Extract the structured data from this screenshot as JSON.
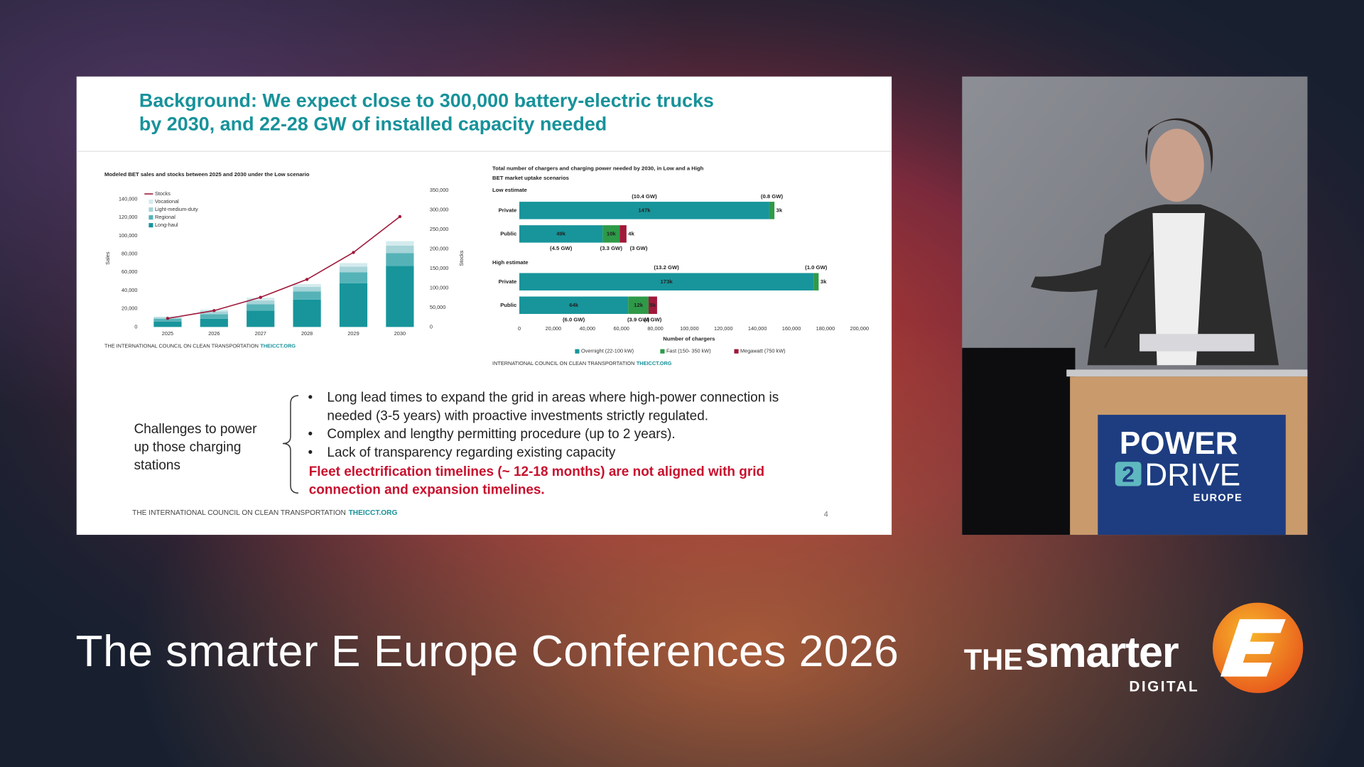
{
  "slide": {
    "title": [
      "Background: We expect close to 300,000 battery-electric trucks",
      "by 2030, and 22-28 GW of installed capacity needed"
    ],
    "challenges": [
      "Challenges to power",
      "up those charging",
      "stations"
    ],
    "bullets": [
      [
        "Long lead times to expand the grid in areas where high-power connection is",
        "needed (3-5 years) with proactive investments strictly regulated."
      ],
      [
        "Complex and lengthy permitting procedure (up to 2 years)."
      ],
      [
        "Lack of transparency regarding existing capacity"
      ]
    ],
    "highlight": [
      "Fleet electrification timelines (~ 12-18 months) are not aligned with grid",
      "connection and expansion timelines."
    ],
    "footer": "THE INTERNATIONAL COUNCIL ON CLEAN TRANSPORTATION",
    "footer_link": "THEICCT.ORG",
    "page": 4
  },
  "podium": {
    "line1": "POWER",
    "digit": "2",
    "line2": "DRIVE",
    "line3": "EUROPE"
  },
  "banner": {
    "title": "The smarter E Europe Conferences 2026",
    "logo_the": "THE",
    "logo_smarter": "smarter",
    "logo_digital": "DIGITAL"
  },
  "chart_data": [
    {
      "type": "bar",
      "title": "Modeled BET sales and stocks between 2025 and 2030 under the Low scenario",
      "y_label": "Sales",
      "y2_label": "Stocks",
      "categories": [
        "2025",
        "2026",
        "2027",
        "2028",
        "2029",
        "2030"
      ],
      "series": [
        {
          "name": "Stocks",
          "type": "line",
          "axis": "y2",
          "color": "#a0183a",
          "values": [
            22000,
            42000,
            76000,
            122000,
            191000,
            283000
          ]
        },
        {
          "name": "Vocational",
          "color": "#d4ebee",
          "values": [
            1000,
            2000,
            3000,
            3000,
            4000,
            5000
          ]
        },
        {
          "name": "Light-medium-duty",
          "color": "#a6d4d8",
          "values": [
            1500,
            3000,
            4000,
            5000,
            6000,
            8000
          ]
        },
        {
          "name": "Regional",
          "color": "#55b3b8",
          "values": [
            3000,
            5000,
            7000,
            9000,
            12000,
            14000
          ]
        },
        {
          "name": "Long-haul",
          "color": "#17959b",
          "values": [
            6000,
            9000,
            18000,
            30000,
            48000,
            67000
          ]
        }
      ],
      "ylim": [
        0,
        140000
      ],
      "yticks": [
        0,
        {
          "value": 20000,
          "label": "20,000"
        },
        {
          "value": 40000,
          "label": "40,000"
        },
        {
          "value": 60000,
          "label": "60,000"
        },
        {
          "value": 80000,
          "label": "80,000"
        },
        {
          "value": 100000,
          "label": "100,000"
        },
        {
          "value": 120000,
          "label": "120,000"
        },
        {
          "value": 140000,
          "label": "140,000"
        }
      ],
      "y2lim": [
        0,
        350000
      ],
      "y2ticks": [
        0,
        {
          "value": 50000,
          "label": "50,000"
        },
        {
          "value": 100000,
          "label": "100,000"
        },
        {
          "value": 150000,
          "label": "150,000"
        },
        {
          "value": 200000,
          "label": "200,000"
        },
        {
          "value": 250000,
          "label": "250,000"
        },
        {
          "value": 300000,
          "label": "300,000"
        },
        {
          "value": 350000,
          "label": "350,000"
        }
      ],
      "source": "THE INTERNATIONAL COUNCIL ON CLEAN TRANSPORTATION",
      "source_link": "THEICCT.ORG"
    },
    {
      "type": "bar",
      "orientation": "horizontal",
      "title": [
        "Total number of chargers and charging power needed by 2030, in Low and a High",
        "BET market uptake scenarios"
      ],
      "x_label": "Number of chargers",
      "series": [
        {
          "name": "Overnight (22-100 kW)",
          "color": "#17959b"
        },
        {
          "name": "Fast (150- 350 kW)",
          "color": "#2e9a48"
        },
        {
          "name": "Megawatt (750 kW)",
          "color": "#a0183a"
        }
      ],
      "panels": [
        {
          "label": "Low estimate",
          "categories": [
            "Private",
            "Public"
          ],
          "series": [
            {
              "values": [
                147000,
                49000
              ],
              "value_labels": [
                "147k",
                "49k"
              ],
              "power_labels": [
                "(10.4 GW)",
                "(4.5 GW)"
              ]
            },
            {
              "values": [
                3000,
                10000
              ],
              "value_labels": [
                "3k",
                "10k"
              ],
              "power_labels": [
                "(0.8 GW)",
                "(3.3 GW)"
              ]
            },
            {
              "values": [
                null,
                4000
              ],
              "value_labels": [
                null,
                "4k"
              ],
              "power_labels": [
                null,
                "(3 GW)"
              ]
            }
          ]
        },
        {
          "label": "High estimate",
          "categories": [
            "Private",
            "Public"
          ],
          "series": [
            {
              "values": [
                173000,
                64000
              ],
              "value_labels": [
                "173k",
                "64k"
              ],
              "power_labels": [
                "(13.2 GW)",
                "(6.0 GW)"
              ]
            },
            {
              "values": [
                3000,
                12000
              ],
              "value_labels": [
                "3k",
                "12k"
              ],
              "power_labels": [
                "(1.0 GW)",
                "(3.9 GW)"
              ]
            },
            {
              "values": [
                null,
                5000
              ],
              "value_labels": [
                null,
                "5k"
              ],
              "power_labels": [
                null,
                "(4 GW)"
              ]
            }
          ]
        }
      ],
      "xlim": [
        0,
        200000
      ],
      "xticks": [
        0,
        {
          "value": 20000,
          "label": "20,000"
        },
        {
          "value": 40000,
          "label": "40,000"
        },
        {
          "value": 60000,
          "label": "60,000"
        },
        {
          "value": 80000,
          "label": "80,000"
        },
        {
          "value": 100000,
          "label": "100,000"
        },
        {
          "value": 120000,
          "label": "120,000"
        },
        {
          "value": 140000,
          "label": "140,000"
        },
        {
          "value": 160000,
          "label": "160,000"
        },
        {
          "value": 180000,
          "label": "180,000"
        },
        {
          "value": 200000,
          "label": "200,000"
        }
      ],
      "source": "INTERNATIONAL COUNCIL ON CLEAN TRANSPORTATION",
      "source_link": "THEICCT.ORG"
    }
  ]
}
